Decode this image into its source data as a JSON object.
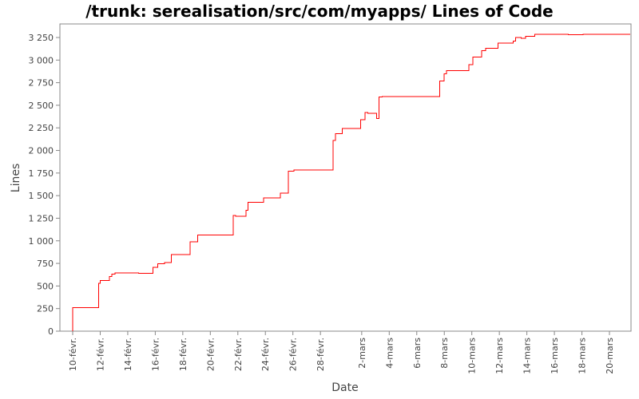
{
  "chart_data": {
    "type": "line",
    "title": "/trunk: serealisation/src/com/myapps/ Lines of Code",
    "xlabel": "Date",
    "ylabel": "Lines",
    "ylim": [
      0,
      3400
    ],
    "xlim": [
      "02-09",
      "03-22"
    ],
    "grid": false,
    "line_color": "#ff0000",
    "y_ticks": [
      0,
      250,
      500,
      750,
      1000,
      1250,
      1500,
      1750,
      2000,
      2250,
      2500,
      2750,
      3000,
      3250
    ],
    "y_tick_labels": [
      "0",
      "250",
      "500",
      "750",
      "1 000",
      "1 250",
      "1 500",
      "1 750",
      "2 000",
      "2 250",
      "2 500",
      "2 750",
      "3 000",
      "3 250"
    ],
    "x_ticks": [
      {
        "date": "02-10",
        "label": "10-févr."
      },
      {
        "date": "02-12",
        "label": "12-févr."
      },
      {
        "date": "02-14",
        "label": "14-févr."
      },
      {
        "date": "02-16",
        "label": "16-févr."
      },
      {
        "date": "02-18",
        "label": "18-févr."
      },
      {
        "date": "02-20",
        "label": "20-févr."
      },
      {
        "date": "02-22",
        "label": "22-févr."
      },
      {
        "date": "02-24",
        "label": "24-févr."
      },
      {
        "date": "02-26",
        "label": "26-févr."
      },
      {
        "date": "02-28",
        "label": "28-févr."
      },
      {
        "date": "03-02",
        "label": "2-mars"
      },
      {
        "date": "03-04",
        "label": "4-mars"
      },
      {
        "date": "03-06",
        "label": "6-mars"
      },
      {
        "date": "03-08",
        "label": "8-mars"
      },
      {
        "date": "03-10",
        "label": "10-mars"
      },
      {
        "date": "03-12",
        "label": "12-mars"
      },
      {
        "date": "03-14",
        "label": "14-mars"
      },
      {
        "date": "03-16",
        "label": "16-mars"
      },
      {
        "date": "03-18",
        "label": "18-mars"
      },
      {
        "date": "03-20",
        "label": "20-mars"
      }
    ],
    "series": [
      {
        "step": true,
        "points": [
          [
            "02-10 00:00",
            0
          ],
          [
            "02-10 00:00",
            260
          ],
          [
            "02-11 21:00",
            260
          ],
          [
            "02-11 21:00",
            530
          ],
          [
            "02-12 00:00",
            530
          ],
          [
            "02-12 00:00",
            560
          ],
          [
            "02-12 16:00",
            560
          ],
          [
            "02-12 16:00",
            605
          ],
          [
            "02-12 20:00",
            605
          ],
          [
            "02-12 20:00",
            630
          ],
          [
            "02-13 02:00",
            630
          ],
          [
            "02-13 02:00",
            645
          ],
          [
            "02-14 19:00",
            645
          ],
          [
            "02-14 19:00",
            640
          ],
          [
            "02-15 20:00",
            640
          ],
          [
            "02-15 20:00",
            705
          ],
          [
            "02-16 04:00",
            705
          ],
          [
            "02-16 04:00",
            745
          ],
          [
            "02-16 16:00",
            745
          ],
          [
            "02-16 16:00",
            760
          ],
          [
            "02-17 04:00",
            760
          ],
          [
            "02-17 04:00",
            850
          ],
          [
            "02-18 13:00",
            850
          ],
          [
            "02-18 13:00",
            990
          ],
          [
            "02-19 02:00",
            990
          ],
          [
            "02-19 02:00",
            1065
          ],
          [
            "02-21 16:00",
            1065
          ],
          [
            "02-21 16:00",
            1280
          ],
          [
            "02-21 20:00",
            1280
          ],
          [
            "02-21 20:00",
            1270
          ],
          [
            "02-22 14:00",
            1270
          ],
          [
            "02-22 14:00",
            1340
          ],
          [
            "02-22 18:00",
            1340
          ],
          [
            "02-22 18:00",
            1425
          ],
          [
            "02-23 21:00",
            1425
          ],
          [
            "02-23 21:00",
            1475
          ],
          [
            "02-25 02:00",
            1475
          ],
          [
            "02-25 02:00",
            1530
          ],
          [
            "02-25 16:00",
            1530
          ],
          [
            "02-25 16:00",
            1770
          ],
          [
            "02-26 02:00",
            1770
          ],
          [
            "02-26 02:00",
            1785
          ],
          [
            "02-28 22:00",
            1785
          ],
          [
            "02-28 22:00",
            2110
          ],
          [
            "02-29 02:00",
            2110
          ],
          [
            "02-29 02:00",
            2185
          ],
          [
            "02-29 14:00",
            2185
          ],
          [
            "02-29 14:00",
            2245
          ],
          [
            "03-01 22:00",
            2245
          ],
          [
            "03-01 22:00",
            2340
          ],
          [
            "03-02 06:00",
            2340
          ],
          [
            "03-02 06:00",
            2420
          ],
          [
            "03-02 11:00",
            2420
          ],
          [
            "03-02 11:00",
            2410
          ],
          [
            "03-03 02:00",
            2410
          ],
          [
            "03-03 02:00",
            2355
          ],
          [
            "03-03 06:00",
            2355
          ],
          [
            "03-03 06:00",
            2590
          ],
          [
            "03-03 12:00",
            2590
          ],
          [
            "03-03 12:00",
            2595
          ],
          [
            "03-07 16:00",
            2595
          ],
          [
            "03-07 16:00",
            2770
          ],
          [
            "03-08 00:00",
            2770
          ],
          [
            "03-08 00:00",
            2850
          ],
          [
            "03-08 04:00",
            2850
          ],
          [
            "03-08 04:00",
            2885
          ],
          [
            "03-09 19:00",
            2885
          ],
          [
            "03-09 19:00",
            2950
          ],
          [
            "03-10 02:00",
            2950
          ],
          [
            "03-10 02:00",
            3035
          ],
          [
            "03-10 17:00",
            3035
          ],
          [
            "03-10 17:00",
            3105
          ],
          [
            "03-11 00:00",
            3105
          ],
          [
            "03-11 00:00",
            3130
          ],
          [
            "03-11 22:00",
            3130
          ],
          [
            "03-11 22:00",
            3190
          ],
          [
            "03-13 00:00",
            3190
          ],
          [
            "03-13 00:00",
            3210
          ],
          [
            "03-13 04:00",
            3210
          ],
          [
            "03-13 04:00",
            3250
          ],
          [
            "03-13 14:00",
            3250
          ],
          [
            "03-13 14:00",
            3240
          ],
          [
            "03-13 22:00",
            3240
          ],
          [
            "03-13 22:00",
            3265
          ],
          [
            "03-14 14:00",
            3265
          ],
          [
            "03-14 14:00",
            3285
          ],
          [
            "03-17 00:00",
            3285
          ],
          [
            "03-17 00:00",
            3280
          ],
          [
            "03-18 02:00",
            3280
          ],
          [
            "03-18 02:00",
            3285
          ],
          [
            "03-21 12:00",
            3285
          ]
        ]
      }
    ]
  }
}
